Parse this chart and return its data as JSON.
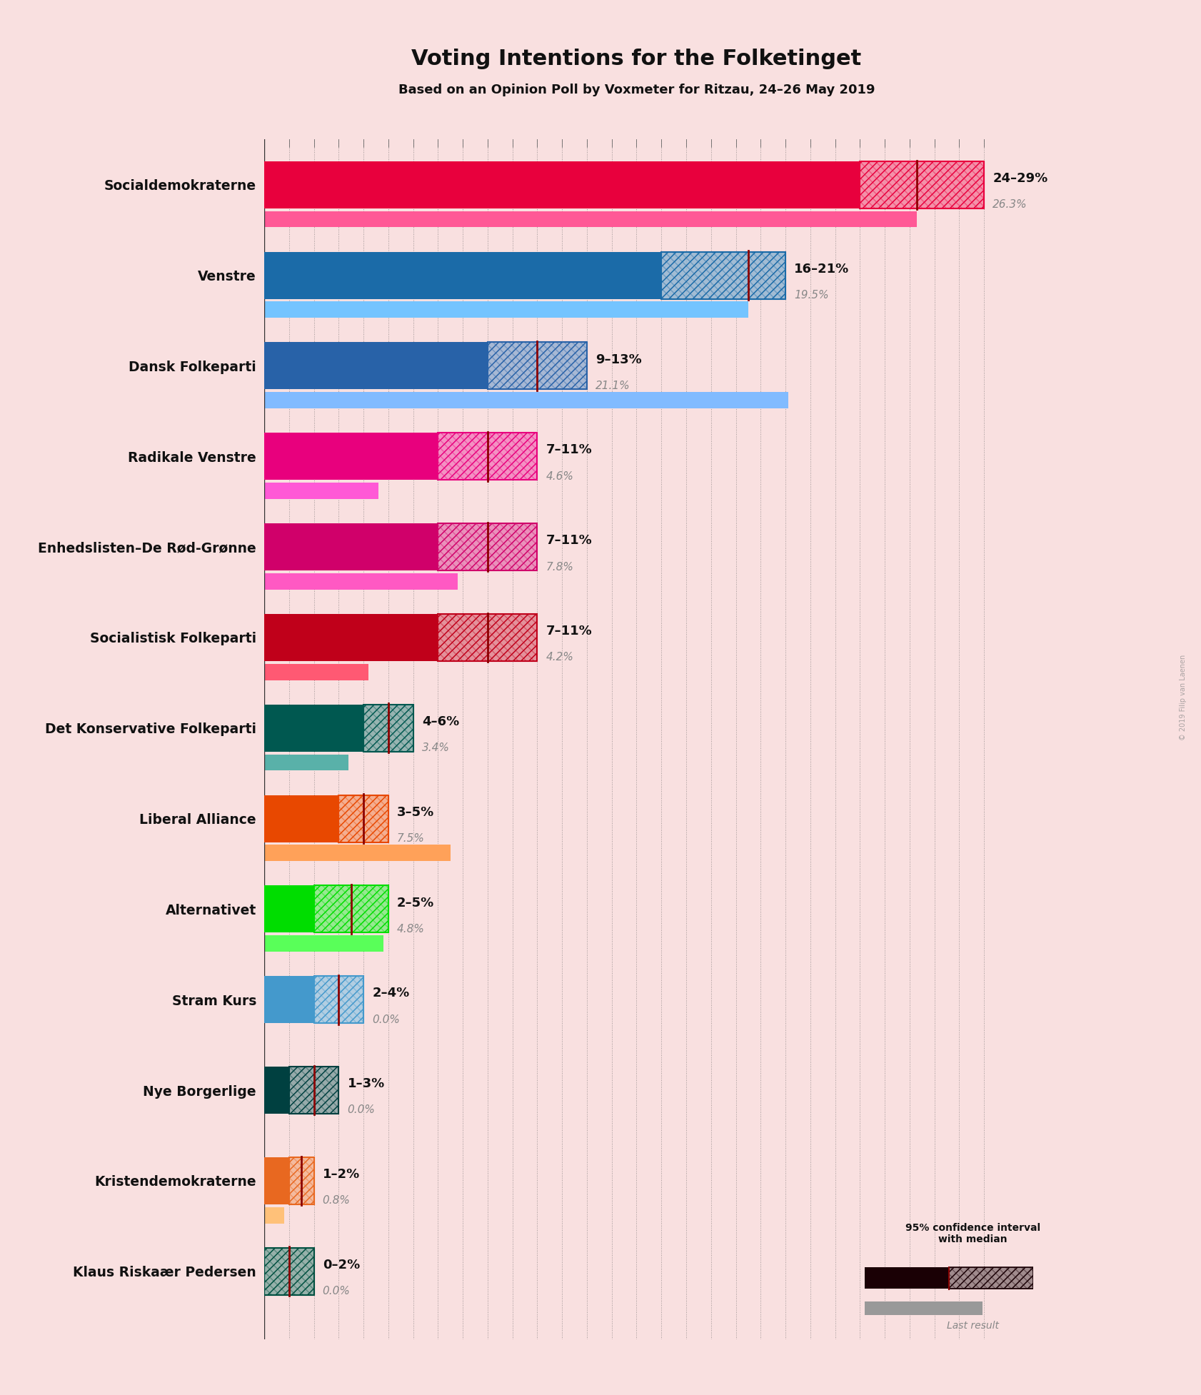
{
  "title": "Voting Intentions for the Folketinget",
  "subtitle": "Based on an Opinion Poll by Voxmeter for Ritzau, 24–26 May 2019",
  "background_color": "#f9e0e0",
  "parties": [
    {
      "name": "Socialdemokraterne",
      "color": "#E8003D",
      "ci_low": 24,
      "ci_high": 29,
      "median": 26.3,
      "last": 26.3,
      "label": "24–29%",
      "last_label": "26.3%"
    },
    {
      "name": "Venstre",
      "color": "#1B6BA8",
      "ci_low": 16,
      "ci_high": 21,
      "median": 19.5,
      "last": 19.5,
      "label": "16–21%",
      "last_label": "19.5%"
    },
    {
      "name": "Dansk Folkeparti",
      "color": "#2862A8",
      "ci_low": 9,
      "ci_high": 13,
      "median": 11.0,
      "last": 21.1,
      "label": "9–13%",
      "last_label": "21.1%"
    },
    {
      "name": "Radikale Venstre",
      "color": "#E8007D",
      "ci_low": 7,
      "ci_high": 11,
      "median": 9.0,
      "last": 4.6,
      "label": "7–11%",
      "last_label": "4.6%"
    },
    {
      "name": "Enhedslisten–De Rød-Grønne",
      "color": "#D0006A",
      "ci_low": 7,
      "ci_high": 11,
      "median": 9.0,
      "last": 7.8,
      "label": "7–11%",
      "last_label": "7.8%"
    },
    {
      "name": "Socialistisk Folkeparti",
      "color": "#C0001A",
      "ci_low": 7,
      "ci_high": 11,
      "median": 9.0,
      "last": 4.2,
      "label": "7–11%",
      "last_label": "4.2%"
    },
    {
      "name": "Det Konservative Folkeparti",
      "color": "#005850",
      "ci_low": 4,
      "ci_high": 6,
      "median": 5.0,
      "last": 3.4,
      "label": "4–6%",
      "last_label": "3.4%"
    },
    {
      "name": "Liberal Alliance",
      "color": "#E84800",
      "ci_low": 3,
      "ci_high": 5,
      "median": 4.0,
      "last": 7.5,
      "label": "3–5%",
      "last_label": "7.5%"
    },
    {
      "name": "Alternativet",
      "color": "#00DD00",
      "ci_low": 2,
      "ci_high": 5,
      "median": 3.5,
      "last": 4.8,
      "label": "2–5%",
      "last_label": "4.8%"
    },
    {
      "name": "Stram Kurs",
      "color": "#4499CC",
      "ci_low": 2,
      "ci_high": 4,
      "median": 3.0,
      "last": 0.0,
      "label": "2–4%",
      "last_label": "0.0%"
    },
    {
      "name": "Nye Borgerlige",
      "color": "#004040",
      "ci_low": 1,
      "ci_high": 3,
      "median": 2.0,
      "last": 0.0,
      "label": "1–3%",
      "last_label": "0.0%"
    },
    {
      "name": "Kristendemokraterne",
      "color": "#E86820",
      "ci_low": 1,
      "ci_high": 2,
      "median": 1.5,
      "last": 0.8,
      "label": "1–2%",
      "last_label": "0.8%"
    },
    {
      "name": "Klaus Riskaær Pedersen",
      "color": "#005040",
      "ci_low": 0,
      "ci_high": 2,
      "median": 1.0,
      "last": 0.0,
      "label": "0–2%",
      "last_label": "0.0%"
    }
  ],
  "xlim": [
    0,
    30
  ],
  "median_line_color": "#8B0000",
  "legend_label_ci": "95% confidence interval\nwith median",
  "legend_label_last": "Last result",
  "watermark": "© 2019 Filip van Laenen"
}
